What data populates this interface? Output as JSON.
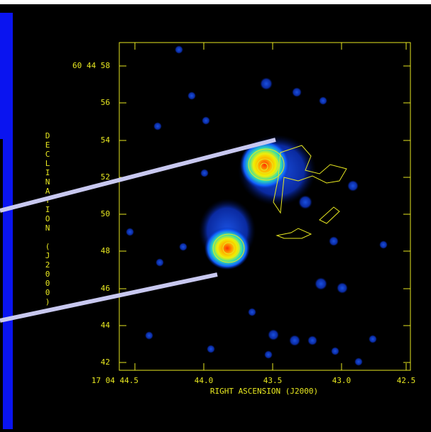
{
  "figure": {
    "y_label": "DECLINATION (J2000)",
    "x_label": "RIGHT ASCENSION (J2000)",
    "y_ticks": [
      "60 44 58",
      "56",
      "54",
      "52",
      "50",
      "48",
      "46",
      "44",
      "42"
    ],
    "x_ticks": [
      "17 04 44.5",
      "44.0",
      "43.5",
      "43.0",
      "42.5"
    ]
  }
}
